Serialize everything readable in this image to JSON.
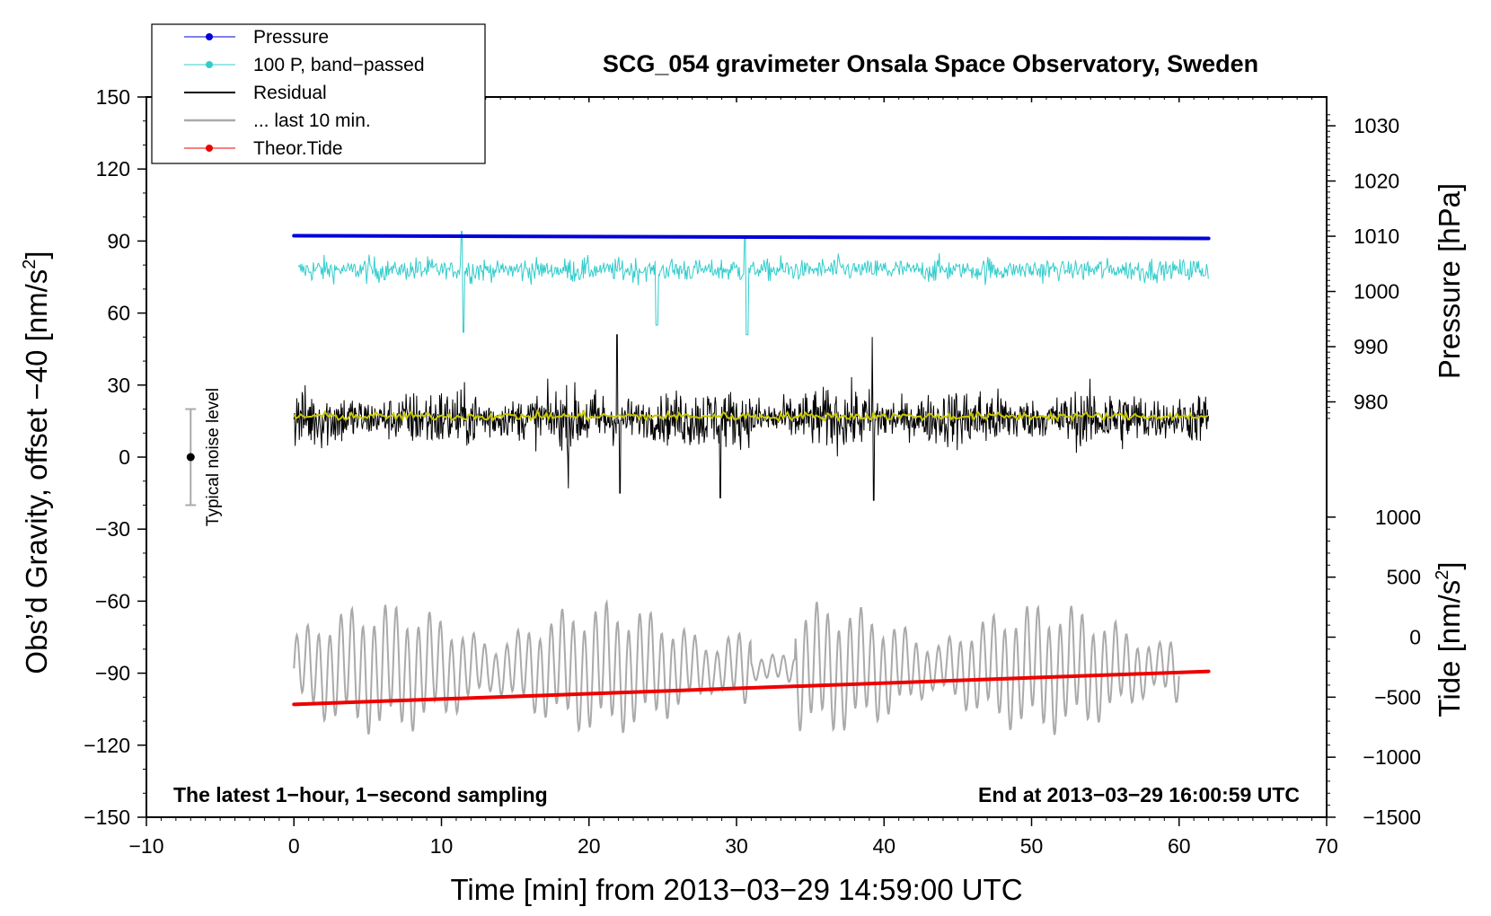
{
  "chart_data": {
    "type": "line",
    "title": "SCG_054 gravimeter Onsala Space Observatory, Sweden",
    "xlabel": "Time [min] from 2013−03−29 14:59:00 UTC",
    "ylabel_left": "Obs’d Gravity, offset −40 [nm/s²]",
    "ylabel_left_main": "Obs’d Gravity, offset −40 [nm/s",
    "ylabel_left_sup": "2",
    "ylabel_left_close": "]",
    "ylabel_right_pressure": "Pressure [hPa]",
    "ylabel_right_tide": "Tide [nm/s²]",
    "ylabel_right_tide_main": "Tide [nm/s",
    "ylabel_right_tide_sup": "2",
    "ylabel_right_tide_close": "]",
    "xlim": [
      -10,
      70
    ],
    "ylim_left": [
      -150,
      150
    ],
    "x_ticks": [
      -10,
      0,
      10,
      20,
      30,
      40,
      50,
      60,
      70
    ],
    "x_tick_labels": [
      "−10",
      "0",
      "10",
      "20",
      "30",
      "40",
      "50",
      "60",
      "70"
    ],
    "y_left_ticks": [
      150,
      120,
      90,
      60,
      30,
      0,
      -30,
      -60,
      -90,
      -120,
      -150
    ],
    "y_left_tick_labels": [
      "150",
      "120",
      "90",
      "60",
      "30",
      "0",
      "−30",
      "−60",
      "−90",
      "−120",
      "−150"
    ],
    "pressure_axis": {
      "ticks": [
        1030,
        1020,
        1010,
        1000,
        990,
        980
      ],
      "tick_labels": [
        "1030",
        "1020",
        "1010",
        "1000",
        "990",
        "980"
      ],
      "maps_to_left": {
        "1030": 138,
        "1010": 92
      }
    },
    "tide_axis": {
      "ticks": [
        1000,
        500,
        0,
        -500,
        -1000,
        -1500
      ],
      "tick_labels": [
        "1000",
        "500",
        "0",
        "−500",
        "−1000",
        "−1500"
      ],
      "maps_to_left": {
        "1000": -25,
        "-1500": -150
      }
    },
    "series": [
      {
        "name": "Pressure",
        "color": "#0000dd",
        "x_range": [
          0,
          62
        ],
        "values_hpa": [
          1010.1,
          1009.6
        ],
        "style": "line-dots"
      },
      {
        "name": "100 P, band−passed",
        "color": "#33cccc",
        "x_range": [
          0,
          62
        ],
        "center_left": 76,
        "amplitude_left": 10,
        "style": "noisy"
      },
      {
        "name": "Residual",
        "color": "#000000",
        "x_range": [
          0,
          62
        ],
        "center_left": 16,
        "amplitude_left": 22,
        "style": "noisy"
      },
      {
        "name": "... last 10 min.",
        "color": "#aaaaaa",
        "x_range": [
          0,
          60
        ],
        "center_left": -88,
        "amplitude_left": 22,
        "style": "oscillating"
      },
      {
        "name": "Theor.Tide",
        "color": "#ee0000",
        "x_range": [
          0,
          62
        ],
        "values_tide": [
          -560,
          -285
        ],
        "style": "line-dots"
      }
    ],
    "smoothed_residual": {
      "color": "#c8c800",
      "center_left": 17
    },
    "noise_bar": {
      "x": -7,
      "center": 0,
      "low": -20,
      "high": 20,
      "label": "Typical noise level"
    },
    "annotations": {
      "bottom_left": "The latest 1−hour, 1−second sampling",
      "bottom_right": "End at 2013−03−29 16:00:59 UTC"
    },
    "legend": {
      "placement": "top-left",
      "entries": [
        "Pressure",
        "100 P, band−passed",
        "Residual",
        "... last 10 min.",
        "Theor.Tide"
      ]
    }
  },
  "colors": {
    "pressure": "#0000dd",
    "bandpassed": "#33cccc",
    "residual": "#000000",
    "residual_smooth": "#c8c800",
    "last10": "#aaaaaa",
    "tide": "#ee0000"
  }
}
